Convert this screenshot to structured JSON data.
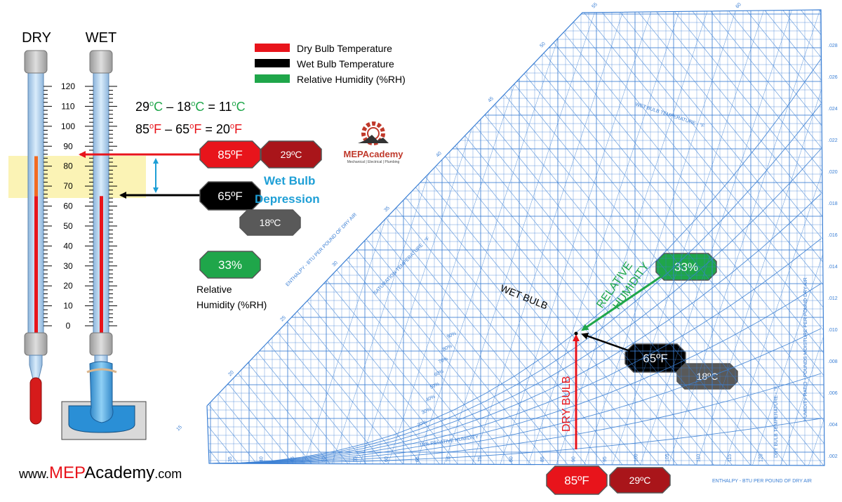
{
  "thermometers": {
    "dry_label": "DRY",
    "wet_label": "WET",
    "scale_ticks": [
      "120",
      "110",
      "100",
      "90",
      "80",
      "70",
      "60",
      "50",
      "40",
      "30",
      "20",
      "10",
      "0"
    ],
    "dry_reading_f": 85,
    "wet_reading_f": 65
  },
  "legend": [
    {
      "label": "Dry Bulb Temperature",
      "color": "#e8141b"
    },
    {
      "label": "Wet Bulb Temperature",
      "color": "#000000"
    },
    {
      "label": "Relative Humidity (%RH)",
      "color": "#1fa64a"
    }
  ],
  "equations": {
    "celsius": {
      "a": "29",
      "b": "18",
      "result": "11",
      "unit": "C",
      "deg": "o",
      "unit_color": "#1fa64a"
    },
    "fahrenheit": {
      "a": "85",
      "b": "65",
      "result": "20",
      "unit": "F",
      "deg": "o",
      "unit_color": "#e8141b"
    }
  },
  "badges": {
    "dry_f": "85ºF",
    "dry_c": "29ºC",
    "wet_f": "65ºF",
    "wet_c": "18ºC",
    "rh": "33%",
    "chart_rh": "33%",
    "chart_wet_f": "65ºF",
    "chart_wet_c": "18ºC",
    "chart_dry_f": "85ºF",
    "chart_dry_c": "29ºC"
  },
  "depression": {
    "line1": "Wet Bulb",
    "line2": "Depression"
  },
  "rh_caption": {
    "line1": "Relative",
    "line2": "Humidity (%RH)"
  },
  "logo": {
    "name": "MEPAcademy",
    "tagline": "Mechanical | Electrical | Plumbing"
  },
  "website": {
    "prefix": "www.",
    "brand": "MEP",
    "rest": "Academy",
    "suffix": ".com"
  },
  "chart": {
    "wet_bulb_label": "WET BULB",
    "relative_humidity_label": "RELATIVE HUMIDITY",
    "dry_bulb_label": "DRY BULB",
    "enthalpy_left_label": "ENTHALPY - BTU PER POUND OF DRY AIR",
    "saturation_label": "SATURATION TEMPERATURE - °F",
    "wet_bulb_axis_label": "WET BULB TEMPERATURE - °F",
    "enthalpy_bottom_label": "ENTHALPY - BTU PER POUND OF DRY AIR",
    "dry_bulb_axis_label": "DRY BULB TEMPERATURE - °F",
    "humidity_ratio_label": "HUMIDITY RATIO - POUNDS MOISTURE PER POUND DRY AIR",
    "rh_curve_label": "10% RELATIVE HUMIDITY",
    "enthalpy_top_ticks": [
      "55",
      "60"
    ],
    "enthalpy_left_ticks": [
      "50",
      "45",
      "40",
      "35",
      "30",
      "25",
      "20",
      "15"
    ],
    "humidity_ratio_ticks": [
      ".028",
      ".026",
      ".024",
      ".022",
      ".020",
      ".018",
      ".016",
      ".014",
      ".012",
      ".010",
      ".008",
      ".006",
      ".004",
      ".002"
    ],
    "bottom_db_ticks": [
      "35",
      "40",
      "45",
      "50",
      "55",
      "60",
      "65",
      "70",
      "75",
      "80",
      "85",
      "90",
      "95",
      "100",
      "105",
      "110",
      "115",
      "120"
    ],
    "rh_percent_ticks": [
      "20%",
      "30%",
      "40%",
      "50%",
      "60%",
      "70%",
      "80%",
      "90%"
    ],
    "state_point": {
      "dry_bulb_f": 85,
      "wet_bulb_f": 65,
      "rh_percent": 33
    }
  },
  "colors": {
    "dry": "#e8141b",
    "wet": "#000000",
    "rh": "#1fa64a",
    "depression": "#1e9fd6",
    "chart_line": "#3b7fd4",
    "dark_red_badge": "#a9151a",
    "grey_badge": "#595959",
    "highlight": "#fbf3b5"
  }
}
